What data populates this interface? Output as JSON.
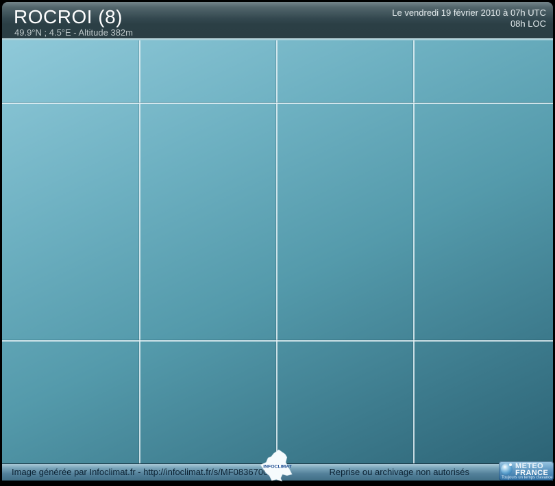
{
  "header": {
    "title": "ROCROI (8)",
    "subtitle": "49.9°N ; 4.5°E - Altitude 382m",
    "timestamp_utc": "Le vendredi 19 février 2010 à 07h UTC",
    "timestamp_local": "08h LOC"
  },
  "canvas": {
    "gradient": {
      "from": "#8fc9d9",
      "mid": "#549aab",
      "to": "#2c6375"
    },
    "grid": {
      "color": "#e6f2f5",
      "vertical_x": [
        200,
        400,
        600
      ],
      "horizontal_y": [
        91,
        438
      ]
    }
  },
  "watermark": {
    "text": "INFOCLIMAT"
  },
  "footer": {
    "credit": "Image générée par Infoclimat.fr - http://infoclimat.fr/s/MF08367002",
    "notice": "Reprise ou archivage non autorisés",
    "logo": {
      "line1": "METEO",
      "line2": "FRANCE",
      "tagline": "Toujours un temps d'avance"
    }
  }
}
